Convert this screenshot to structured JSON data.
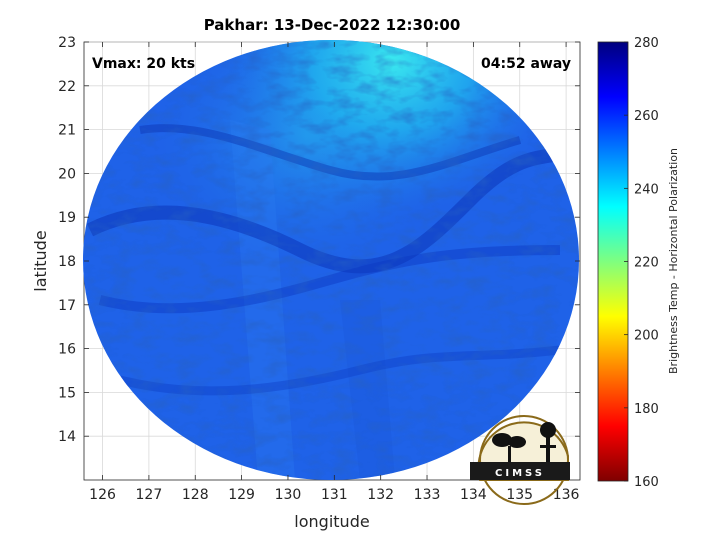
{
  "title": "Pakhar: 13-Dec-2022 12:30:00",
  "annotations": {
    "vmax": "Vmax: 20 kts",
    "time_away": "04:52 away"
  },
  "axes": {
    "xlabel": "longitude",
    "ylabel": "latitude",
    "xlim": [
      125.6,
      136.3
    ],
    "ylim": [
      13.0,
      23.0
    ],
    "xticks": [
      "126",
      "127",
      "128",
      "129",
      "130",
      "131",
      "132",
      "133",
      "134",
      "135",
      "136"
    ],
    "yticks": [
      "14",
      "15",
      "16",
      "17",
      "18",
      "19",
      "20",
      "21",
      "22",
      "23"
    ],
    "grid": true
  },
  "colorbar": {
    "label": "Brightness Temp - Horizontal Polarization",
    "range": [
      160,
      280
    ],
    "ticks": [
      "160",
      "180",
      "200",
      "220",
      "240",
      "260",
      "280"
    ],
    "colormap": "jet",
    "colors": [
      "#7f0000",
      "#ff0000",
      "#ff7f00",
      "#ffff00",
      "#7fff7f",
      "#00ffff",
      "#007fff",
      "#0000ff",
      "#00007f"
    ]
  },
  "logo": {
    "text": "CIMSS"
  },
  "image": {
    "description_colors": {
      "base": "#1e5fe6",
      "warm": "#0d3fc4",
      "cool": "#22d6f0"
    }
  }
}
